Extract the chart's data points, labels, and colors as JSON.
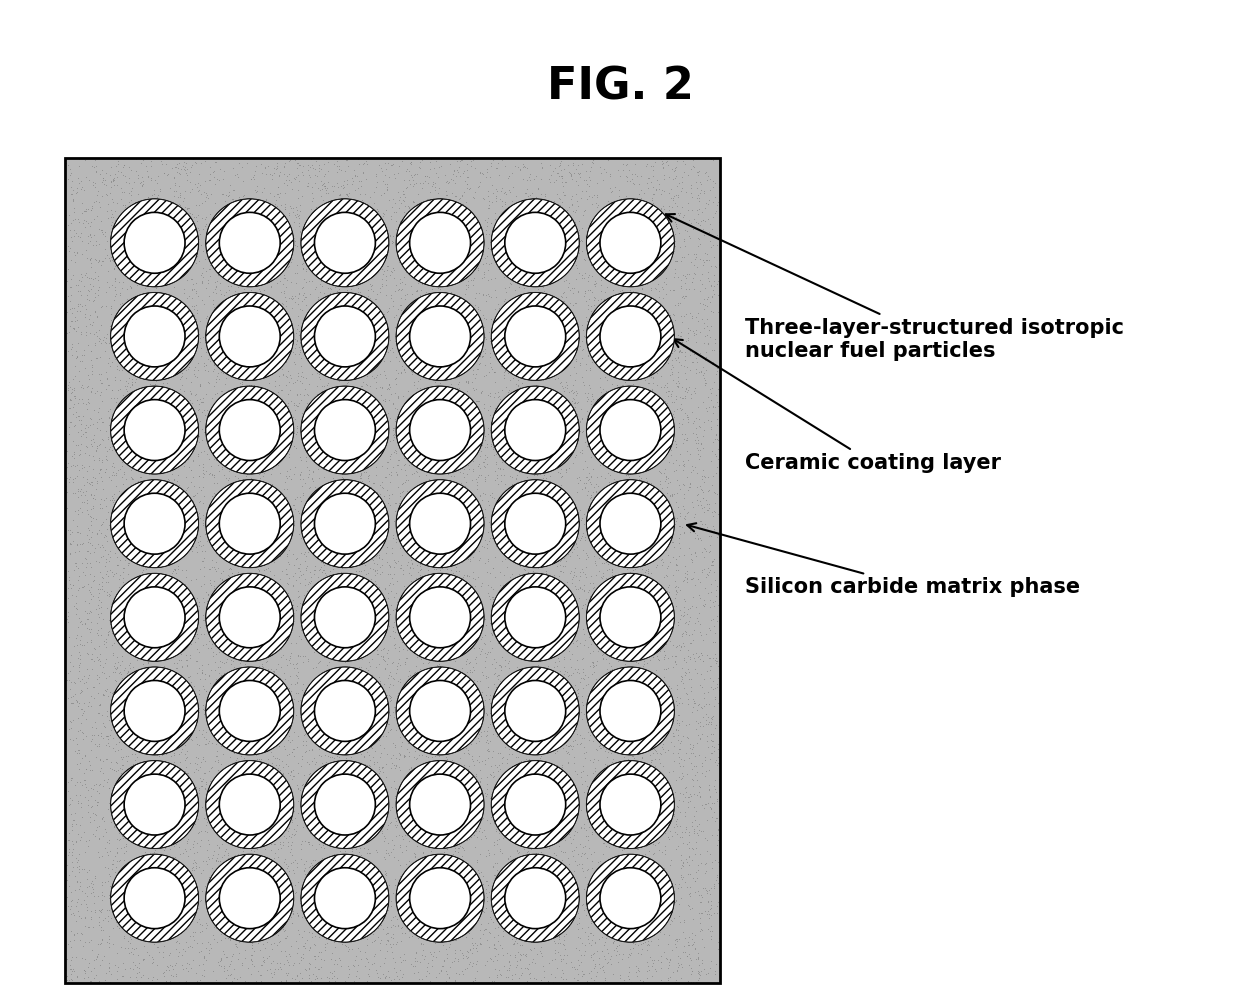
{
  "title": "FIG. 2",
  "title_fontsize": 32,
  "title_fontweight": "bold",
  "fig_width": 12.4,
  "fig_height": 10.07,
  "dpi": 100,
  "background_color": "#ffffff",
  "matrix_color": "#aaaaaa",
  "matrix_border_color": "#000000",
  "inner_color": "#ffffff",
  "inner_border_color": "#000000",
  "outer_border_color": "#000000",
  "n_cols": 6,
  "n_rows": 8,
  "label1": "Three-layer-structured isotropic\nnuclear fuel particles",
  "label2": "Ceramic coating layer",
  "label3": "Silicon carbide matrix phase",
  "label_fontsize": 15,
  "label_fontweight": "bold",
  "arrow_color": "#000000"
}
